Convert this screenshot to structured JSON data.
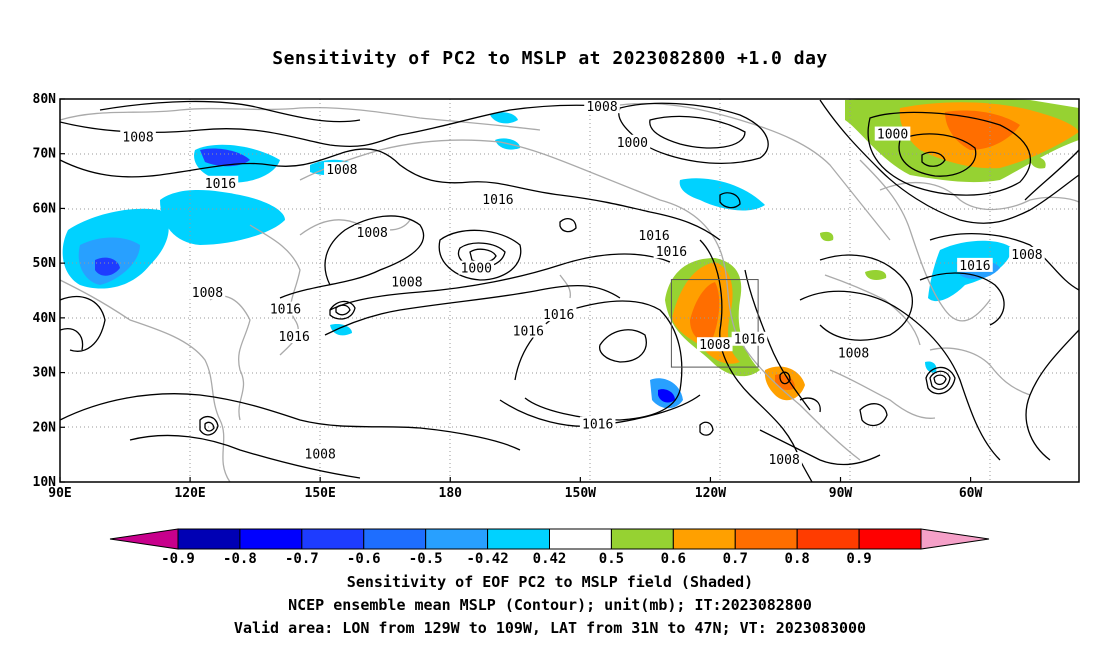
{
  "title": "Sensitivity of PC2 to MSLP at 2023082800 +1.0 day",
  "map": {
    "lat_labels": [
      "80N",
      "70N",
      "60N",
      "50N",
      "40N",
      "30N",
      "20N",
      "10N"
    ],
    "lon_labels": [
      "90E",
      "120E",
      "150E",
      "180",
      "150W",
      "120W",
      "90W",
      "60W"
    ],
    "lon_range": [
      90,
      325
    ],
    "lat_range": [
      10,
      80
    ],
    "valid_area": {
      "lon": [
        231,
        251
      ],
      "lat": [
        31,
        47
      ]
    },
    "contour_labels": [
      {
        "text": "1008",
        "lon": 108,
        "lat": 73
      },
      {
        "text": "1008",
        "lon": 155,
        "lat": 67
      },
      {
        "text": "1016",
        "lon": 127,
        "lat": 64.5
      },
      {
        "text": "1008",
        "lon": 215,
        "lat": 78.5
      },
      {
        "text": "1000",
        "lon": 222,
        "lat": 72
      },
      {
        "text": "1016",
        "lon": 191,
        "lat": 61.5
      },
      {
        "text": "1008",
        "lon": 162,
        "lat": 55.5
      },
      {
        "text": "1016",
        "lon": 227,
        "lat": 55
      },
      {
        "text": "1016",
        "lon": 231,
        "lat": 52
      },
      {
        "text": "1000",
        "lon": 282,
        "lat": 73.5
      },
      {
        "text": "1008",
        "lon": 313,
        "lat": 51.5
      },
      {
        "text": "1016",
        "lon": 301,
        "lat": 49.5
      },
      {
        "text": "1000",
        "lon": 186,
        "lat": 49
      },
      {
        "text": "1008",
        "lon": 170,
        "lat": 46.5
      },
      {
        "text": "1008",
        "lon": 124,
        "lat": 44.5
      },
      {
        "text": "1016",
        "lon": 142,
        "lat": 41.5
      },
      {
        "text": "1016",
        "lon": 144,
        "lat": 36.5
      },
      {
        "text": "1016",
        "lon": 205,
        "lat": 40.5
      },
      {
        "text": "1016",
        "lon": 198,
        "lat": 37.5
      },
      {
        "text": "1008",
        "lon": 241,
        "lat": 35
      },
      {
        "text": "1016",
        "lon": 249,
        "lat": 36
      },
      {
        "text": "1008",
        "lon": 273,
        "lat": 33.5
      },
      {
        "text": "1016",
        "lon": 214,
        "lat": 20.5
      },
      {
        "text": "1008",
        "lon": 150,
        "lat": 15
      },
      {
        "text": "1008",
        "lon": 257,
        "lat": 14
      }
    ]
  },
  "colorbar": {
    "labels": [
      "-0.9",
      "-0.8",
      "-0.7",
      "-0.6",
      "-0.5",
      "-0.42",
      "0.42",
      "0.5",
      "0.6",
      "0.7",
      "0.8",
      "0.9"
    ],
    "colors": [
      "#c8008c",
      "#0000b4",
      "#0000ff",
      "#1e3cff",
      "#1e6eff",
      "#28a0ff",
      "#00d2ff",
      "#ffffff",
      "#96d232",
      "#ffa000",
      "#ff6e00",
      "#ff3c00",
      "#ff0000",
      "#f5a0c8"
    ]
  },
  "caption": {
    "line1": "Sensitivity of EOF PC2 to MSLP field (Shaded)",
    "line2": "NCEP ensemble mean MSLP (Contour); unit(mb); IT:2023082800",
    "line3": "Valid area: LON from 129W to 109W, LAT from 31N to 47N; VT: 2023083000"
  }
}
